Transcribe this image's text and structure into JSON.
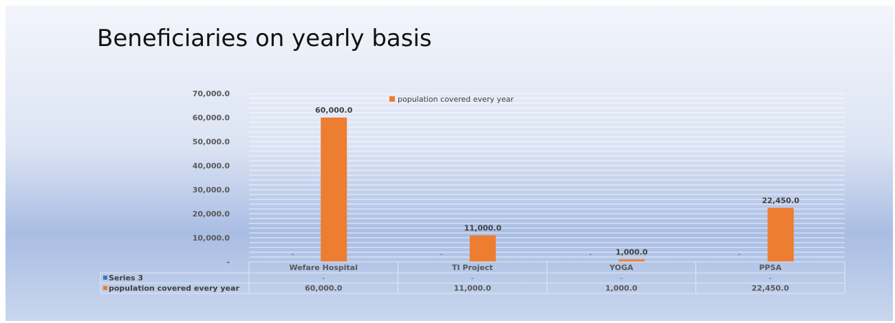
{
  "title": "Beneficiaries on yearly basis",
  "chart_data": {
    "type": "bar",
    "categories": [
      "Wefare Hospital",
      "TI Project",
      "YOGA",
      "PPSA"
    ],
    "series": [
      {
        "name": "Series 3",
        "values": [
          0,
          0,
          0,
          0
        ],
        "labels": [
          "-",
          "-",
          "-",
          "-"
        ],
        "color": "#4472c4"
      },
      {
        "name": "population covered every year",
        "values": [
          60000,
          11000,
          1000,
          22450
        ],
        "labels": [
          "60,000.0",
          "11,000.0",
          "1,000.0",
          "22,450.0"
        ],
        "color": "#ed7d31"
      }
    ],
    "ylim": [
      0,
      70000
    ],
    "y_ticks": [
      0,
      10000,
      20000,
      30000,
      40000,
      50000,
      60000,
      70000
    ],
    "y_tick_labels": [
      "-",
      "10,000.0",
      "20,000.0",
      "30,000.0",
      "40,000.0",
      "50,000.0",
      "60,000.0",
      "70,000.0"
    ],
    "legend": {
      "position": "top",
      "entries": [
        "population covered every year"
      ]
    },
    "data_table": true,
    "grid": true
  }
}
